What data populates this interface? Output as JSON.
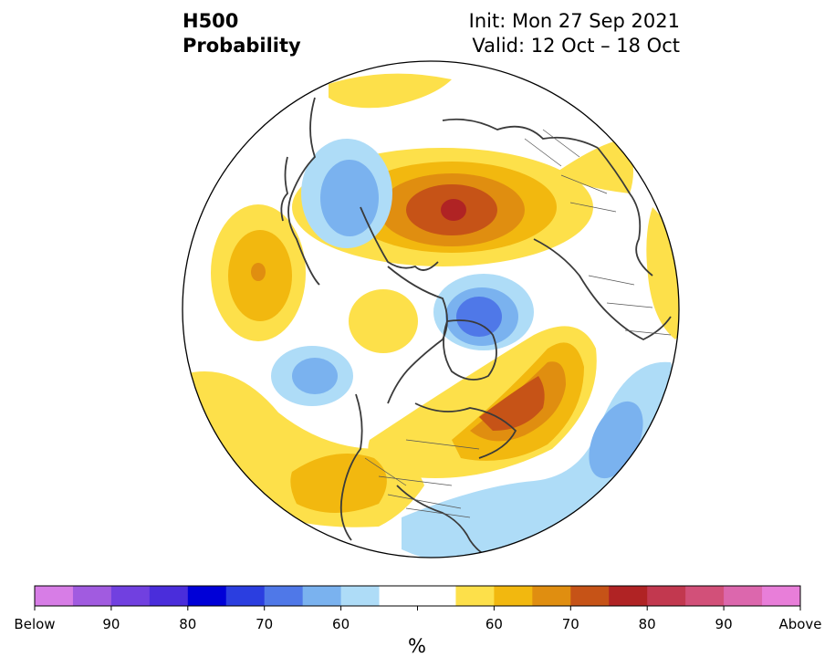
{
  "title": {
    "line1": "H500",
    "line2": "Probability",
    "init": "Init: Mon 27 Sep 2021",
    "valid": "Valid: 12 Oct – 18 Oct"
  },
  "colorbar": {
    "unit": "%",
    "below_colors": [
      "#d77de6",
      "#a15be0",
      "#7140e0",
      "#4a2ddb",
      "#0000d7",
      "#2b3ee0",
      "#4f78e8",
      "#7ab2ef",
      "#aedcf7"
    ],
    "neutral_color": "#ffffff",
    "above_colors": [
      "#fde04a",
      "#f2b80f",
      "#e08e10",
      "#c65317",
      "#b02324",
      "#c2384f",
      "#d25079",
      "#dc67ad",
      "#e87ed9"
    ],
    "tick_labels": [
      "Below",
      "90",
      "80",
      "70",
      "60",
      "60",
      "70",
      "80",
      "90",
      "Above"
    ]
  },
  "map": {
    "projection": "north-polar-stereographic",
    "features": [
      "coastlines",
      "country-borders",
      "us-state-borders"
    ],
    "anomalies": [
      {
        "region": "eastern Siberia",
        "sign": "above",
        "max_percent": 80
      },
      {
        "region": "southern Greenland / Labrador Sea",
        "sign": "above",
        "max_percent": 75
      },
      {
        "region": "central Pacific",
        "sign": "above",
        "max_percent": 70
      },
      {
        "region": "western United States",
        "sign": "above",
        "max_percent": 65
      },
      {
        "region": "Europe / Mediterranean",
        "sign": "above",
        "max_percent": 60
      },
      {
        "region": "western Europe / Scandinavia",
        "sign": "above",
        "max_percent": 60
      },
      {
        "region": "Barents Sea",
        "sign": "below",
        "max_percent": 70
      },
      {
        "region": "North Atlantic",
        "sign": "below",
        "max_percent": 65
      },
      {
        "region": "Gulf of Alaska",
        "sign": "below",
        "max_percent": 65
      },
      {
        "region": "central Asia",
        "sign": "below",
        "max_percent": 65
      },
      {
        "region": "southeastern United States",
        "sign": "below",
        "max_percent": 60
      }
    ]
  }
}
